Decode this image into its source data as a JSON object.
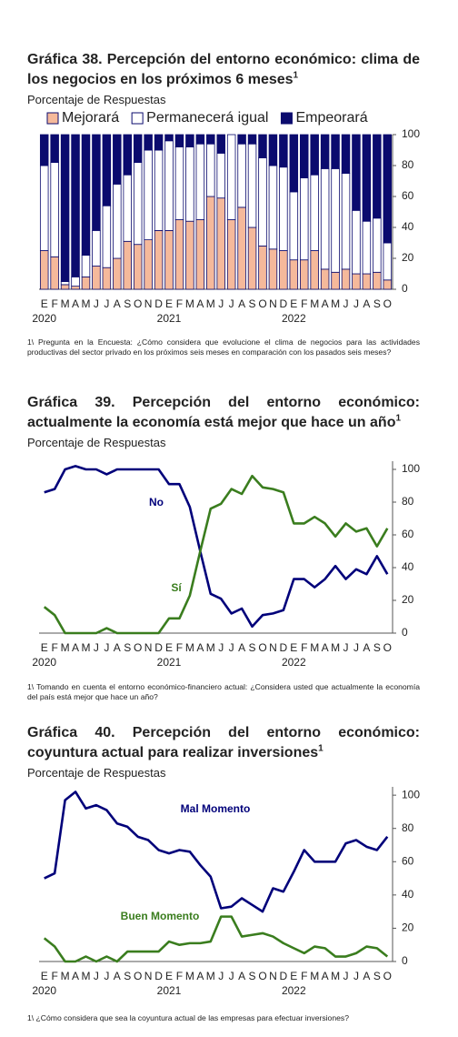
{
  "chart_data": [
    {
      "type": "stacked_bar",
      "title": "Gráfica 38. Percepción del entorno económico: clima de los negocios en los próximos 6 meses",
      "title_note": "1",
      "subtitle": "Porcentaje de Respuestas",
      "footnote": "1\\ Pregunta en la Encuesta: ¿Cómo considera que evolucione el clima de negocios para las actividades productivas del sector privado en los próximos seis meses en comparación con los pasados seis meses?",
      "categories": [
        "E",
        "F",
        "M",
        "A",
        "M",
        "J",
        "J",
        "A",
        "S",
        "O",
        "N",
        "D",
        "E",
        "F",
        "M",
        "A",
        "M",
        "J",
        "J",
        "A",
        "S",
        "O",
        "N",
        "D",
        "E",
        "F",
        "M",
        "A",
        "M",
        "J",
        "J",
        "A",
        "S",
        "O"
      ],
      "year_labels": [
        "2020",
        "2021",
        "2022"
      ],
      "series": [
        {
          "name": "Mejorará",
          "color": "#f5b99b",
          "values": [
            25,
            21,
            3,
            2,
            8,
            15,
            14,
            20,
            31,
            29,
            32,
            38,
            38,
            45,
            44,
            45,
            60,
            59,
            45,
            53,
            40,
            28,
            26,
            25,
            19,
            19,
            25,
            13,
            11,
            13,
            10,
            10,
            11,
            6
          ]
        },
        {
          "name": "Permanecerá igual",
          "color": "#ffffff",
          "values": [
            55,
            61,
            2,
            6,
            14,
            23,
            40,
            48,
            43,
            53,
            58,
            52,
            58,
            47,
            48,
            49,
            34,
            29,
            55,
            41,
            54,
            57,
            54,
            54,
            44,
            53,
            49,
            65,
            67,
            62,
            41,
            34,
            35,
            24
          ]
        },
        {
          "name": "Empeorará",
          "color": "#0b0b6e",
          "values": [
            20,
            18,
            95,
            92,
            78,
            62,
            46,
            32,
            26,
            18,
            10,
            10,
            4,
            8,
            8,
            6,
            6,
            12,
            0,
            6,
            6,
            15,
            20,
            21,
            37,
            28,
            26,
            22,
            22,
            25,
            49,
            56,
            54,
            70
          ]
        }
      ],
      "ylim": [
        0,
        100
      ],
      "yticks": [
        0,
        20,
        40,
        60,
        80,
        100
      ]
    },
    {
      "type": "line",
      "title": "Gráfica 39. Percepción del entorno económico: actualmente la economía está mejor que hace un año",
      "title_note": "1",
      "subtitle": "Porcentaje de Respuestas",
      "footnote": "1\\ Tomando en cuenta el entorno económico-financiero actual: ¿Considera usted que actualmente la economía del país está mejor que hace un año?",
      "categories": [
        "E",
        "F",
        "M",
        "A",
        "M",
        "J",
        "J",
        "A",
        "S",
        "O",
        "N",
        "D",
        "E",
        "F",
        "M",
        "A",
        "M",
        "J",
        "J",
        "A",
        "S",
        "O",
        "N",
        "D",
        "E",
        "F",
        "M",
        "A",
        "M",
        "J",
        "J",
        "A",
        "S",
        "O"
      ],
      "year_labels": [
        "2020",
        "2021",
        "2022"
      ],
      "series": [
        {
          "name": "No",
          "color": "#00007a",
          "values": [
            86,
            88,
            100,
            102,
            100,
            100,
            97,
            100,
            100,
            100,
            100,
            100,
            91,
            91,
            77,
            50,
            24,
            21,
            12,
            15,
            4,
            11,
            12,
            14,
            33,
            33,
            28,
            33,
            41,
            33,
            39,
            36,
            47,
            36
          ]
        },
        {
          "name": "Sí",
          "color": "#3a7d1e",
          "values": [
            16,
            11,
            0,
            0,
            0,
            0,
            3,
            0,
            0,
            0,
            0,
            0,
            9,
            9,
            23,
            50,
            76,
            79,
            88,
            85,
            96,
            89,
            88,
            86,
            67,
            67,
            71,
            67,
            59,
            67,
            62,
            64,
            53,
            64
          ]
        }
      ],
      "ylim": [
        0,
        105
      ],
      "yticks": [
        0,
        20,
        40,
        60,
        80,
        100
      ]
    },
    {
      "type": "line",
      "title": "Gráfica 40. Percepción del entorno económico: coyuntura actual para realizar inversiones",
      "title_note": "1",
      "subtitle": "Porcentaje de Respuestas",
      "footnote": "1\\ ¿Cómo considera que sea la coyuntura actual de las empresas para efectuar inversiones?",
      "categories": [
        "E",
        "F",
        "M",
        "A",
        "M",
        "J",
        "J",
        "A",
        "S",
        "O",
        "N",
        "D",
        "E",
        "F",
        "M",
        "A",
        "M",
        "J",
        "J",
        "A",
        "S",
        "O",
        "N",
        "D",
        "E",
        "F",
        "M",
        "A",
        "M",
        "J",
        "J",
        "A",
        "S",
        "O"
      ],
      "year_labels": [
        "2020",
        "2021",
        "2022"
      ],
      "series": [
        {
          "name": "Mal Momento",
          "color": "#00007a",
          "values": [
            50,
            53,
            97,
            102,
            92,
            94,
            91,
            83,
            81,
            75,
            73,
            67,
            65,
            67,
            66,
            58,
            51,
            32,
            33,
            38,
            34,
            30,
            44,
            42,
            54,
            67,
            60,
            60,
            60,
            71,
            73,
            69,
            67,
            75
          ]
        },
        {
          "name": "Buen Momento",
          "color": "#3a7d1e",
          "values": [
            14,
            9,
            0,
            0,
            3,
            0,
            3,
            0,
            6,
            6,
            6,
            6,
            12,
            10,
            11,
            11,
            12,
            27,
            27,
            15,
            16,
            17,
            15,
            11,
            8,
            5,
            9,
            8,
            3,
            3,
            5,
            9,
            8,
            3
          ]
        }
      ],
      "ylim": [
        0,
        105
      ],
      "yticks": [
        0,
        20,
        40,
        60,
        80,
        100
      ]
    }
  ]
}
